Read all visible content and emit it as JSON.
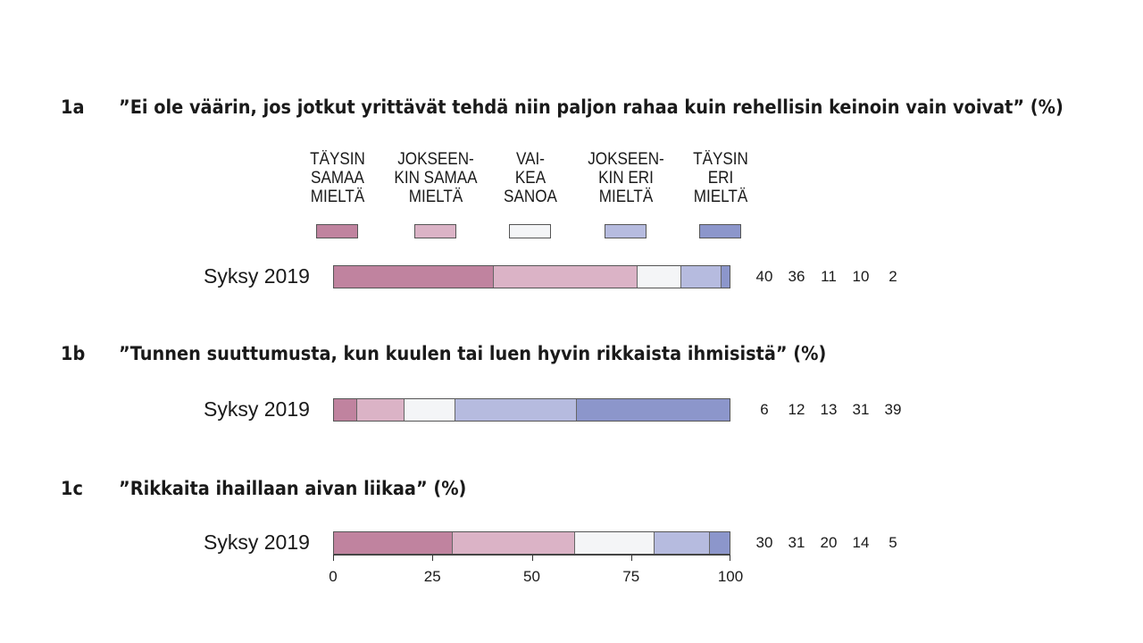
{
  "questions": [
    {
      "num": "1a",
      "text": "”Ei ole väärin, jos jotkut yrittävät tehdä niin paljon rahaa kuin rehellisin keinoin vain voivat” (%)"
    },
    {
      "num": "1b",
      "text": "”Tunnen suuttumusta, kun kuulen tai luen hyvin rikkaista ihmisistä” (%)"
    },
    {
      "num": "1c",
      "text": "”Rikkaita ihaillaan aivan liikaa” (%)"
    }
  ],
  "legend": [
    {
      "lines": [
        "TÄYSIN",
        "SAMAA",
        "MIELTÄ"
      ],
      "color": "#c0839f"
    },
    {
      "lines": [
        "JOKSEEN-",
        "KIN SAMAA",
        "MIELTÄ"
      ],
      "color": "#dbb3c6"
    },
    {
      "lines": [
        "VAI-",
        "KEA",
        "SANOA"
      ],
      "color": "#f4f5f7"
    },
    {
      "lines": [
        "JOKSEEN-",
        "KIN ERI",
        "MIELTÄ"
      ],
      "color": "#b6bbdf"
    },
    {
      "lines": [
        "TÄYSIN",
        "ERI",
        "MIELTÄ"
      ],
      "color": "#8c96cb"
    }
  ],
  "chart_data": {
    "type": "bar",
    "orientation": "horizontal",
    "stacked": true,
    "xlim": [
      0,
      100
    ],
    "xticks": [
      0,
      25,
      50,
      75,
      100
    ],
    "categories": [
      "Syksy 2019",
      "Syksy 2019",
      "Syksy 2019"
    ],
    "series": [
      {
        "name": "TÄYSIN SAMAA MIELTÄ",
        "values": [
          40,
          6,
          30
        ]
      },
      {
        "name": "JOKSEENKIN SAMAA MIELTÄ",
        "values": [
          36,
          12,
          31
        ]
      },
      {
        "name": "VAIKEA SANOA",
        "values": [
          11,
          13,
          20
        ]
      },
      {
        "name": "JOKSEENKIN ERI MIELTÄ",
        "values": [
          10,
          31,
          14
        ]
      },
      {
        "name": "TÄYSIN ERI MIELTÄ",
        "values": [
          2,
          39,
          5
        ]
      }
    ]
  }
}
